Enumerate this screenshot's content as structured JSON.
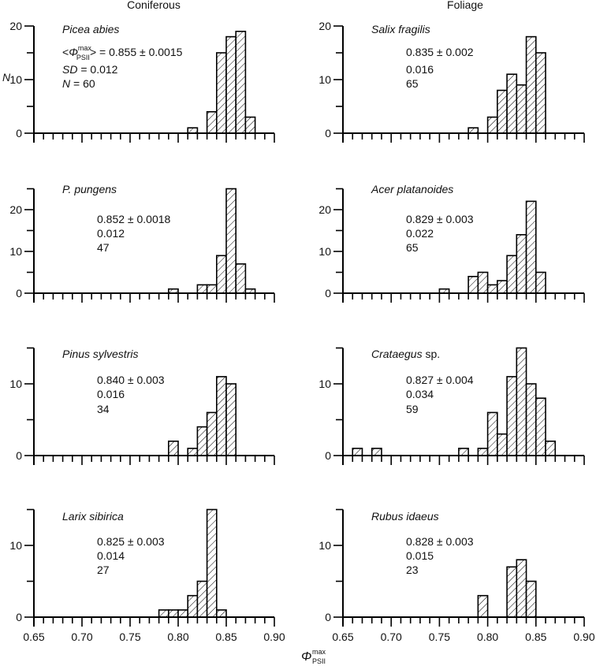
{
  "column_headers": [
    "Coniferous",
    "Foliage"
  ],
  "y_axis_label": "N",
  "x_axis_label": {
    "symbol": "Φ",
    "sup": "max",
    "sub": "PSII"
  },
  "stat_labels": {
    "mean_open": "<",
    "mean_close": "> = ",
    "sd": "SD",
    "n": "N",
    "eq": " = "
  },
  "chart_data": {
    "type": "bar",
    "subtype": "histogram-grid",
    "bin_width": 0.01,
    "xlim": [
      0.65,
      0.9
    ],
    "x_ticks": [
      "0.65",
      "0.70",
      "0.75",
      "0.80",
      "0.85",
      "0.90"
    ],
    "grid": false,
    "hatch": "diagonal",
    "panels": [
      {
        "column": "Coniferous",
        "species": "Picea abies",
        "species_suffix": "",
        "mean": "0.855 ± 0.0015",
        "sd": "0.012",
        "n": "60",
        "ylim": [
          0,
          20
        ],
        "y_ticks": [
          0,
          10,
          20
        ],
        "bins": [
          [
            0.81,
            1
          ],
          [
            0.83,
            4
          ],
          [
            0.84,
            15
          ],
          [
            0.85,
            18
          ],
          [
            0.86,
            19
          ],
          [
            0.87,
            3
          ]
        ]
      },
      {
        "column": "Foliage",
        "species": "Salix fragilis",
        "species_suffix": "",
        "mean": "0.835 ± 0.002",
        "sd": "0.016",
        "n": "65",
        "ylim": [
          0,
          20
        ],
        "y_ticks": [
          0,
          10,
          20
        ],
        "bins": [
          [
            0.78,
            1
          ],
          [
            0.8,
            3
          ],
          [
            0.81,
            8
          ],
          [
            0.82,
            11
          ],
          [
            0.83,
            9
          ],
          [
            0.84,
            18
          ],
          [
            0.85,
            15
          ]
        ]
      },
      {
        "column": "Coniferous",
        "species": "P. pungens",
        "species_suffix": "",
        "mean": "0.852 ± 0.0018",
        "sd": "0.012",
        "n": "47",
        "ylim": [
          0,
          25
        ],
        "y_ticks": [
          0,
          10,
          20
        ],
        "bins": [
          [
            0.79,
            1
          ],
          [
            0.82,
            2
          ],
          [
            0.83,
            2
          ],
          [
            0.84,
            9
          ],
          [
            0.85,
            25
          ],
          [
            0.86,
            7
          ],
          [
            0.87,
            1
          ]
        ]
      },
      {
        "column": "Foliage",
        "species": "Acer platanoides",
        "species_suffix": "",
        "mean": "0.829 ± 0.003",
        "sd": "0.022",
        "n": "65",
        "ylim": [
          0,
          25
        ],
        "y_ticks": [
          0,
          10,
          20
        ],
        "bins": [
          [
            0.75,
            1
          ],
          [
            0.78,
            4
          ],
          [
            0.79,
            5
          ],
          [
            0.8,
            2
          ],
          [
            0.81,
            3
          ],
          [
            0.82,
            9
          ],
          [
            0.83,
            14
          ],
          [
            0.84,
            22
          ],
          [
            0.85,
            5
          ]
        ]
      },
      {
        "column": "Coniferous",
        "species": "Pinus sylvestris",
        "species_suffix": "",
        "mean": "0.840 ± 0.003",
        "sd": "0.016",
        "n": "34",
        "ylim": [
          0,
          15
        ],
        "y_ticks": [
          0,
          10
        ],
        "bins": [
          [
            0.79,
            2
          ],
          [
            0.81,
            1
          ],
          [
            0.82,
            4
          ],
          [
            0.83,
            6
          ],
          [
            0.84,
            11
          ],
          [
            0.85,
            10
          ]
        ]
      },
      {
        "column": "Foliage",
        "species": "Crataegus",
        "species_suffix": " sp.",
        "mean": "0.827 ± 0.004",
        "sd": "0.034",
        "n": "59",
        "ylim": [
          0,
          15
        ],
        "y_ticks": [
          0,
          10
        ],
        "bins": [
          [
            0.66,
            1
          ],
          [
            0.68,
            1
          ],
          [
            0.77,
            1
          ],
          [
            0.79,
            1
          ],
          [
            0.8,
            6
          ],
          [
            0.81,
            3
          ],
          [
            0.82,
            11
          ],
          [
            0.83,
            15
          ],
          [
            0.84,
            10
          ],
          [
            0.85,
            8
          ],
          [
            0.86,
            2
          ]
        ]
      },
      {
        "column": "Coniferous",
        "species": "Larix sibirica",
        "species_suffix": "",
        "mean": "0.825 ± 0.003",
        "sd": "0.014",
        "n": "27",
        "ylim": [
          0,
          15
        ],
        "y_ticks": [
          0,
          10
        ],
        "bins": [
          [
            0.78,
            1
          ],
          [
            0.79,
            1
          ],
          [
            0.8,
            1
          ],
          [
            0.81,
            3
          ],
          [
            0.82,
            5
          ],
          [
            0.83,
            15
          ],
          [
            0.84,
            1
          ]
        ]
      },
      {
        "column": "Foliage",
        "species": "Rubus idaeus",
        "species_suffix": "",
        "mean": "0.828 ± 0.003",
        "sd": "0.015",
        "n": "23",
        "ylim": [
          0,
          15
        ],
        "y_ticks": [
          0,
          10
        ],
        "bins": [
          [
            0.79,
            3
          ],
          [
            0.82,
            7
          ],
          [
            0.83,
            8
          ],
          [
            0.84,
            5
          ]
        ]
      }
    ]
  }
}
